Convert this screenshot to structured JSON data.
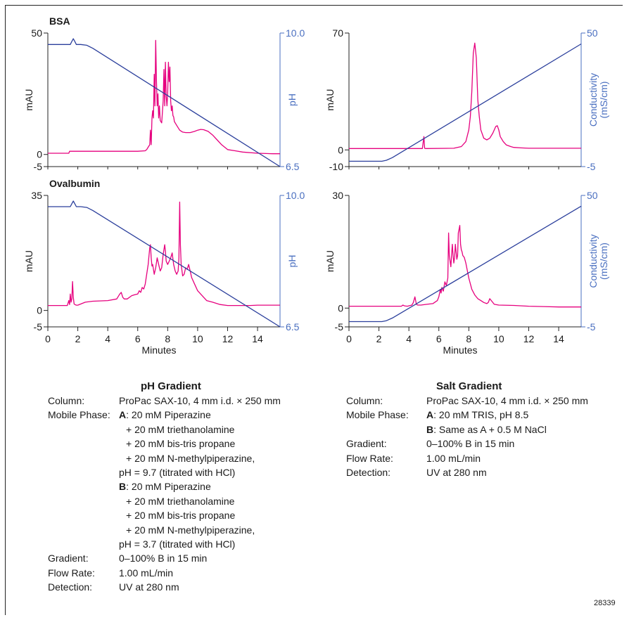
{
  "chart_data": [
    {
      "id": "bsa-ph",
      "type": "line",
      "title": "BSA",
      "ylabel": "mAU",
      "y2label": [
        "pH"
      ],
      "ylim": [
        -5,
        50
      ],
      "y2lim": [
        6.5,
        10.0
      ],
      "yticks": [
        {
          "v": 50,
          "label": "50"
        },
        {
          "v": 0,
          "label": "0"
        },
        {
          "v": -5,
          "label": "-5"
        }
      ],
      "y2ticks": [
        {
          "v": 10.0,
          "label": "10.0"
        },
        {
          "v": 6.5,
          "label": "6.5"
        }
      ],
      "xlim": [
        0,
        15.5
      ],
      "colors": {
        "trace": "#e6007e",
        "gradient": "#2b3f9c",
        "axis2": "#4a6fc0"
      },
      "series": [
        {
          "role": "trace",
          "axis": "left",
          "x": [
            0,
            1.4,
            1.45,
            1.55,
            2.0,
            3.0,
            4.0,
            5.0,
            6.0,
            6.5,
            6.6,
            6.7,
            6.8,
            6.85,
            6.9,
            6.95,
            7.0,
            7.05,
            7.1,
            7.15,
            7.2,
            7.25,
            7.3,
            7.35,
            7.4,
            7.45,
            7.5,
            7.6,
            7.7,
            7.75,
            7.8,
            7.85,
            7.9,
            7.95,
            8.0,
            8.05,
            8.1,
            8.15,
            8.2,
            8.25,
            8.3,
            8.35,
            8.4,
            8.45,
            8.5,
            8.6,
            8.8,
            9.0,
            9.2,
            9.5,
            9.8,
            10.0,
            10.2,
            10.4,
            10.7,
            11.0,
            11.3,
            11.6,
            12.0,
            12.5,
            13.0,
            14.0,
            15.0,
            15.5
          ],
          "y": [
            0.5,
            0.5,
            1.3,
            1.3,
            1.3,
            1.3,
            1.3,
            1.3,
            1.3,
            1.5,
            2.0,
            3.0,
            4.0,
            10.0,
            4.0,
            15.0,
            18.0,
            15.0,
            33.0,
            20.0,
            47.0,
            30.0,
            20.0,
            25.0,
            15.0,
            20.0,
            14.0,
            13.0,
            22.0,
            35.0,
            20.0,
            38.0,
            24.0,
            20.0,
            25.0,
            38.0,
            30.0,
            36.0,
            22.0,
            18.0,
            20.0,
            16.0,
            15.5,
            13.5,
            13.0,
            12.0,
            10.0,
            9.2,
            9.0,
            9.0,
            9.5,
            10.0,
            10.3,
            10.2,
            9.5,
            8.0,
            6.0,
            4.0,
            2.0,
            1.5,
            1.0,
            0.5,
            0.3,
            0.3
          ]
        },
        {
          "role": "gradient",
          "axis": "right",
          "x": [
            0,
            1.5,
            1.6,
            1.7,
            1.8,
            1.9,
            2.2,
            2.6,
            3.0,
            15.5
          ],
          "y": [
            9.7,
            9.7,
            9.78,
            9.85,
            9.78,
            9.7,
            9.7,
            9.68,
            9.6,
            6.5
          ]
        }
      ]
    },
    {
      "id": "bsa-salt",
      "type": "line",
      "ylabel": "mAU",
      "y2label": [
        "Conductivity",
        "(mS/cm)"
      ],
      "ylim": [
        -10,
        70
      ],
      "y2lim": [
        -5,
        50
      ],
      "yticks": [
        {
          "v": 70,
          "label": "70"
        },
        {
          "v": 0,
          "label": "0"
        },
        {
          "v": -10,
          "label": "-10"
        }
      ],
      "y2ticks": [
        {
          "v": 50,
          "label": "50"
        },
        {
          "v": -5,
          "label": "-5"
        }
      ],
      "xlim": [
        0,
        15.5
      ],
      "colors": {
        "trace": "#e6007e",
        "gradient": "#2b3f9c",
        "axis2": "#4a6fc0"
      },
      "series": [
        {
          "role": "trace",
          "axis": "left",
          "x": [
            0,
            4.9,
            5.0,
            5.05,
            5.1,
            5.2,
            7.0,
            7.5,
            7.8,
            8.0,
            8.1,
            8.2,
            8.3,
            8.4,
            8.5,
            8.6,
            8.7,
            8.8,
            9.0,
            9.2,
            9.4,
            9.6,
            9.8,
            9.9,
            10.0,
            10.1,
            10.3,
            10.5,
            10.8,
            11.0,
            11.5,
            12.0,
            15.5
          ],
          "y": [
            0.8,
            0.8,
            8.0,
            1.0,
            0.8,
            0.8,
            1.0,
            2.0,
            5.0,
            12.0,
            20.0,
            35.0,
            58.0,
            64.0,
            55.0,
            30.0,
            20.0,
            12.0,
            7.0,
            6.0,
            7.0,
            10.0,
            14.0,
            14.5,
            12.0,
            8.0,
            5.0,
            3.0,
            2.0,
            1.5,
            1.2,
            1.0,
            1.0
          ]
        },
        {
          "role": "gradient",
          "axis": "right",
          "x": [
            0,
            2.2,
            2.5,
            2.9,
            15.5
          ],
          "y": [
            -2.8,
            -2.8,
            -2.4,
            -1.3,
            45.5
          ]
        }
      ]
    },
    {
      "id": "ova-ph",
      "type": "line",
      "title": "Ovalbumin",
      "ylabel": "mAU",
      "y2label": [
        "pH"
      ],
      "ylim": [
        -5,
        35
      ],
      "y2lim": [
        6.5,
        10.0
      ],
      "yticks": [
        {
          "v": 35,
          "label": "35"
        },
        {
          "v": 0,
          "label": "0"
        },
        {
          "v": -5,
          "label": "-5"
        }
      ],
      "y2ticks": [
        {
          "v": 10.0,
          "label": "10.0"
        },
        {
          "v": 6.5,
          "label": "6.5"
        }
      ],
      "xlabel": "Minutes",
      "xticks": [
        0,
        2,
        4,
        6,
        8,
        10,
        12,
        14
      ],
      "xlim": [
        0,
        15.5
      ],
      "colors": {
        "trace": "#e6007e",
        "gradient": "#2b3f9c",
        "axis2": "#4a6fc0"
      },
      "series": [
        {
          "role": "trace",
          "axis": "left",
          "x": [
            0,
            1.3,
            1.4,
            1.45,
            1.5,
            1.55,
            1.6,
            1.65,
            1.7,
            1.75,
            1.8,
            1.9,
            2.0,
            2.5,
            3.0,
            4.0,
            4.6,
            4.8,
            4.9,
            5.0,
            5.1,
            5.3,
            5.6,
            5.8,
            6.0,
            6.1,
            6.2,
            6.3,
            6.4,
            6.5,
            6.6,
            6.7,
            6.8,
            6.85,
            6.9,
            6.95,
            7.0,
            7.1,
            7.2,
            7.3,
            7.4,
            7.5,
            7.6,
            7.7,
            7.8,
            7.85,
            7.9,
            8.0,
            8.1,
            8.2,
            8.3,
            8.4,
            8.5,
            8.6,
            8.7,
            8.75,
            8.8,
            8.85,
            8.9,
            9.0,
            9.1,
            9.2,
            9.3,
            9.4,
            9.5,
            9.6,
            9.8,
            10.0,
            10.3,
            10.6,
            11.0,
            11.5,
            12.0,
            12.5,
            13.0,
            13.5,
            14.0,
            14.5,
            15.0,
            15.5
          ],
          "y": [
            1.5,
            1.5,
            3.0,
            1.8,
            5.0,
            2.5,
            3.5,
            8.8,
            4.0,
            2.0,
            1.8,
            1.6,
            1.6,
            2.5,
            2.8,
            3.0,
            3.5,
            5.0,
            5.5,
            4.0,
            3.5,
            3.5,
            4.5,
            4.8,
            5.0,
            6.0,
            5.5,
            7.0,
            6.5,
            8.0,
            11.0,
            14.0,
            19.0,
            20.0,
            16.0,
            13.5,
            14.0,
            11.0,
            13.0,
            16.0,
            14.0,
            12.0,
            13.0,
            17.0,
            20.0,
            18.0,
            15.0,
            14.0,
            15.0,
            16.0,
            17.5,
            14.0,
            12.0,
            11.0,
            12.0,
            16.0,
            33.0,
            20.0,
            14.0,
            10.5,
            11.0,
            13.0,
            12.5,
            14.0,
            12.0,
            10.0,
            8.0,
            6.0,
            4.5,
            3.0,
            2.5,
            1.8,
            1.5,
            1.5,
            1.5,
            1.5,
            1.6,
            1.6,
            1.6,
            1.6
          ]
        },
        {
          "role": "gradient",
          "axis": "right",
          "x": [
            0,
            1.5,
            1.6,
            1.7,
            1.8,
            1.9,
            2.2,
            2.6,
            3.0,
            15.5
          ],
          "y": [
            9.7,
            9.7,
            9.78,
            9.85,
            9.78,
            9.7,
            9.7,
            9.68,
            9.6,
            6.5
          ]
        }
      ]
    },
    {
      "id": "ova-salt",
      "type": "line",
      "ylabel": "mAU",
      "y2label": [
        "Conductivity",
        "(mS/cm)"
      ],
      "ylim": [
        -5,
        30
      ],
      "y2lim": [
        -5,
        50
      ],
      "yticks": [
        {
          "v": 30,
          "label": "30"
        },
        {
          "v": 0,
          "label": "0"
        },
        {
          "v": -5,
          "label": "-5"
        }
      ],
      "y2ticks": [
        {
          "v": 50,
          "label": "50"
        },
        {
          "v": -5,
          "label": "-5"
        }
      ],
      "xlabel": "Minutes",
      "xticks": [
        0,
        2,
        4,
        6,
        8,
        10,
        12,
        14
      ],
      "xlim": [
        0,
        15.5
      ],
      "colors": {
        "trace": "#e6007e",
        "gradient": "#2b3f9c",
        "axis2": "#4a6fc0"
      },
      "series": [
        {
          "role": "trace",
          "axis": "left",
          "x": [
            0,
            3.5,
            3.6,
            3.7,
            3.9,
            4.2,
            4.3,
            4.4,
            4.5,
            4.6,
            4.8,
            5.2,
            5.6,
            5.9,
            6.0,
            6.1,
            6.15,
            6.2,
            6.3,
            6.4,
            6.5,
            6.6,
            6.65,
            6.7,
            6.8,
            6.85,
            6.9,
            6.95,
            7.0,
            7.05,
            7.1,
            7.2,
            7.25,
            7.3,
            7.35,
            7.4,
            7.45,
            7.5,
            7.55,
            7.6,
            7.7,
            7.8,
            7.9,
            8.0,
            8.2,
            8.4,
            8.6,
            8.8,
            9.0,
            9.2,
            9.3,
            9.4,
            9.5,
            9.7,
            10.0,
            11.0,
            12.0,
            13.0,
            14.0,
            15.5
          ],
          "y": [
            0.5,
            0.5,
            0.8,
            0.6,
            0.5,
            0.8,
            1.5,
            3.0,
            1.0,
            0.8,
            0.8,
            1.0,
            1.2,
            2.0,
            3.0,
            5.0,
            4.0,
            5.5,
            4.5,
            7.0,
            6.0,
            8.0,
            20.0,
            14.0,
            11.0,
            14.0,
            17.0,
            14.0,
            12.0,
            13.5,
            17.0,
            13.0,
            14.0,
            20.0,
            21.0,
            22.0,
            17.0,
            15.5,
            15.0,
            14.0,
            13.5,
            12.0,
            10.0,
            8.0,
            5.0,
            3.5,
            2.5,
            2.0,
            1.5,
            1.2,
            1.5,
            2.5,
            2.0,
            1.0,
            0.8,
            0.7,
            0.5,
            0.4,
            0.3,
            0.3
          ]
        },
        {
          "role": "gradient",
          "axis": "right",
          "x": [
            0,
            2.2,
            2.5,
            2.9,
            15.5
          ],
          "y": [
            -2.8,
            -2.8,
            -2.4,
            -1.3,
            45.5
          ]
        }
      ]
    }
  ],
  "ph_gradient": {
    "title": "pH Gradient",
    "rows": [
      {
        "label": "Column:",
        "value": "ProPac SAX-10, 4 mm i.d. × 250 mm"
      },
      {
        "label": "Mobile Phase:",
        "bold": "A",
        "value": ": 20 mM Piperazine"
      },
      {
        "label": "",
        "value": "  + 20 mM triethanolamine"
      },
      {
        "label": "",
        "value": "  + 20 mM bis-tris propane"
      },
      {
        "label": "",
        "value": "  + 20 mM N-methylpiperazine,"
      },
      {
        "label": "",
        "value": "pH = 9.7 (titrated with HCl)"
      },
      {
        "label": "",
        "bold": "B",
        "value": ": 20 mM Piperazine"
      },
      {
        "label": "",
        "value": "  + 20 mM triethanolamine"
      },
      {
        "label": "",
        "value": "  + 20 mM bis-tris propane"
      },
      {
        "label": "",
        "value": "  + 20 mM N-methylpiperazine,"
      },
      {
        "label": "",
        "value": "pH = 3.7 (titrated with HCl)"
      },
      {
        "label": "Gradient:",
        "value": "0–100% B in 15 min"
      },
      {
        "label": "Flow Rate:",
        "value": "1.00 mL/min"
      },
      {
        "label": "Detection:",
        "value": "UV at 280 nm"
      }
    ]
  },
  "salt_gradient": {
    "title": "Salt Gradient",
    "rows": [
      {
        "label": "Column:",
        "value": "ProPac SAX-10, 4 mm i.d. × 250 mm"
      },
      {
        "label": "Mobile Phase:",
        "bold": "A",
        "value": ": 20 mM TRIS, pH 8.5"
      },
      {
        "label": "",
        "bold": "B",
        "value": ": Same as A + 0.5 M NaCl"
      },
      {
        "label": "Gradient:",
        "value": "0–100% B in 15 min"
      },
      {
        "label": "Flow Rate:",
        "value": "1.00 mL/min"
      },
      {
        "label": "Detection:",
        "value": "UV at 280 nm"
      }
    ]
  },
  "figure_number": "28339"
}
